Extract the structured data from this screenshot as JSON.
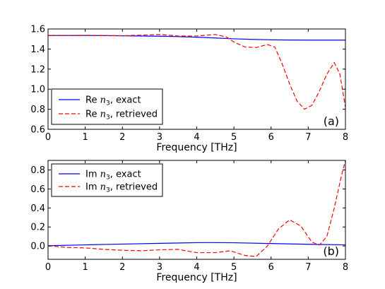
{
  "chart_data": [
    {
      "type": "line",
      "panel": "(a)",
      "xlabel": "Frequency [THz]",
      "xlim": [
        0,
        8
      ],
      "ylim": [
        0.6,
        1.6
      ],
      "xticks": [
        "0",
        "1",
        "2",
        "3",
        "4",
        "5",
        "6",
        "7",
        "8"
      ],
      "yticks": [
        "0.6",
        "0.8",
        "1.0",
        "1.2",
        "1.4",
        "1.6"
      ],
      "legend_placement": "lower-left",
      "series": [
        {
          "legend": "Re n3, exact",
          "legend_prefix": "Re ",
          "legend_symbol": "n",
          "legend_sub": "3",
          "legend_suffix": ", exact",
          "color": "#0000ff",
          "style": "solid",
          "x": [
            0,
            1,
            2,
            3,
            3.5,
            4,
            4.5,
            5,
            5.5,
            6,
            6.5,
            7,
            7.5,
            8
          ],
          "y": [
            1.535,
            1.535,
            1.532,
            1.528,
            1.524,
            1.518,
            1.51,
            1.502,
            1.496,
            1.492,
            1.49,
            1.489,
            1.489,
            1.489
          ]
        },
        {
          "legend": "Re n3, retrieved",
          "legend_prefix": "Re ",
          "legend_symbol": "n",
          "legend_sub": "3",
          "legend_suffix": ", retrieved",
          "color": "#ff0000",
          "style": "dashed",
          "x": [
            0,
            1,
            2,
            2.5,
            3,
            3.5,
            4,
            4.5,
            4.8,
            5,
            5.3,
            5.6,
            5.9,
            6.1,
            6.3,
            6.5,
            6.7,
            6.9,
            7.1,
            7.3,
            7.5,
            7.7,
            7.85,
            8
          ],
          "y": [
            1.535,
            1.537,
            1.533,
            1.538,
            1.545,
            1.53,
            1.53,
            1.545,
            1.52,
            1.47,
            1.42,
            1.415,
            1.445,
            1.42,
            1.25,
            1.05,
            0.88,
            0.8,
            0.84,
            0.98,
            1.15,
            1.265,
            1.15,
            0.82
          ]
        }
      ]
    },
    {
      "type": "line",
      "panel": "(b)",
      "xlabel": "Frequency [THz]",
      "xlim": [
        0,
        8
      ],
      "ylim": [
        -0.14,
        0.9
      ],
      "xticks": [
        "0",
        "1",
        "2",
        "3",
        "4",
        "5",
        "6",
        "7",
        "8"
      ],
      "yticks": [
        "0.0",
        "0.2",
        "0.4",
        "0.6",
        "0.8"
      ],
      "legend_placement": "upper-left",
      "series": [
        {
          "legend": "Im n3, exact",
          "legend_prefix": "Im ",
          "legend_symbol": "n",
          "legend_sub": "3",
          "legend_suffix": ", exact",
          "color": "#0000ff",
          "style": "solid",
          "x": [
            0,
            1,
            2,
            3,
            4,
            4.3,
            5,
            6,
            7,
            8
          ],
          "y": [
            0.003,
            0.012,
            0.02,
            0.028,
            0.035,
            0.036,
            0.034,
            0.026,
            0.018,
            0.012
          ]
        },
        {
          "legend": "Im n3, retrieved",
          "legend_prefix": "Im ",
          "legend_symbol": "n",
          "legend_sub": "3",
          "legend_suffix": ", retrieved",
          "color": "#ff0000",
          "style": "dashed",
          "x": [
            0,
            0.5,
            1,
            1.5,
            2,
            2.5,
            3,
            3.5,
            4,
            4.5,
            4.9,
            5.3,
            5.6,
            5.9,
            6.2,
            6.5,
            6.8,
            7.1,
            7.3,
            7.5,
            7.7,
            7.9,
            8
          ],
          "y": [
            0.003,
            -0.015,
            -0.02,
            -0.035,
            -0.045,
            -0.05,
            -0.04,
            -0.035,
            -0.07,
            -0.07,
            -0.05,
            -0.1,
            -0.11,
            0.0,
            0.18,
            0.275,
            0.21,
            0.04,
            0.01,
            0.1,
            0.4,
            0.75,
            0.9
          ]
        }
      ]
    }
  ]
}
